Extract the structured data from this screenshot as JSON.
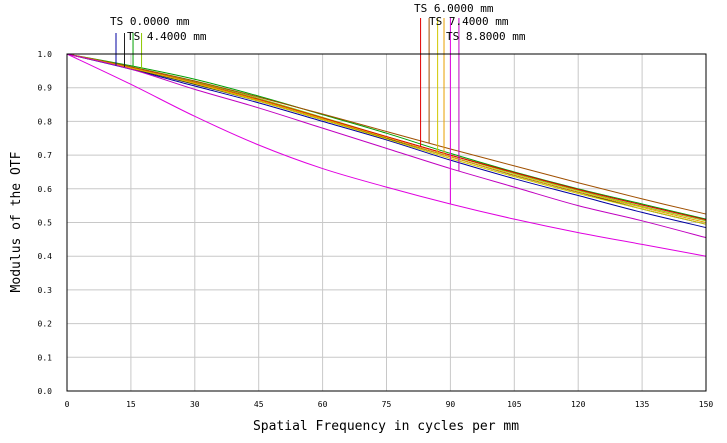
{
  "chart_data": {
    "type": "line",
    "title": "",
    "xlabel": "Spatial Frequency in cycles per mm",
    "ylabel": "Modulus of the OTF",
    "xlim": [
      0,
      150
    ],
    "ylim": [
      0,
      1
    ],
    "grid": true,
    "legend_position": "top",
    "x_ticks": [
      0,
      15,
      30,
      45,
      60,
      75,
      90,
      105,
      120,
      135,
      150
    ],
    "x_tick_labels": [
      "0",
      "15",
      "30",
      "45",
      "60",
      "75",
      "90",
      "105",
      "120",
      "135",
      "150"
    ],
    "y_ticks": [
      0,
      0.1,
      0.2,
      0.3,
      0.4,
      0.5,
      0.6,
      0.7,
      0.8,
      0.9,
      1.0
    ],
    "y_tick_labels": [
      "0.0",
      "0.1",
      "0.2",
      "0.3",
      "0.4",
      "0.5",
      "0.6",
      "0.7",
      "0.8",
      "0.9",
      "1.0"
    ],
    "x": [
      0,
      15,
      30,
      45,
      60,
      75,
      90,
      105,
      120,
      135,
      150
    ],
    "series": [
      {
        "name": "TS 0.0000 mm",
        "color": "#0000a0",
        "marker_x": 11.5,
        "values": [
          1.0,
          0.955,
          0.905,
          0.855,
          0.8,
          0.745,
          0.685,
          0.63,
          0.58,
          0.53,
          0.485
        ]
      },
      {
        "name": "",
        "color": "#202020",
        "marker_x": 13.5,
        "values": [
          1.0,
          0.957,
          0.91,
          0.86,
          0.805,
          0.75,
          0.695,
          0.64,
          0.59,
          0.54,
          0.495
        ]
      },
      {
        "name": "TS 4.4000 mm",
        "color": "#00a000",
        "marker_x": 15.5,
        "values": [
          1.0,
          0.965,
          0.925,
          0.875,
          0.82,
          0.765,
          0.705,
          0.65,
          0.6,
          0.555,
          0.51
        ]
      },
      {
        "name": "",
        "color": "#8cc800",
        "marker_x": 17.5,
        "values": [
          1.0,
          0.962,
          0.918,
          0.868,
          0.812,
          0.755,
          0.7,
          0.645,
          0.595,
          0.548,
          0.505
        ]
      },
      {
        "name": "TS 6.0000 mm",
        "color": "#e00000",
        "marker_x": 83.0,
        "values": [
          1.0,
          0.96,
          0.915,
          0.865,
          0.81,
          0.755,
          0.7,
          0.648,
          0.598,
          0.552,
          0.508
        ]
      },
      {
        "name": "",
        "color": "#a05000",
        "marker_x": 85.0,
        "values": [
          1.0,
          0.962,
          0.92,
          0.872,
          0.822,
          0.77,
          0.718,
          0.668,
          0.618,
          0.57,
          0.525
        ]
      },
      {
        "name": "TS 7.4000 mm",
        "color": "#d0c800",
        "marker_x": 87.0,
        "values": [
          1.0,
          0.958,
          0.912,
          0.86,
          0.805,
          0.748,
          0.69,
          0.636,
          0.586,
          0.54,
          0.495
        ]
      },
      {
        "name": "",
        "color": "#e8a000",
        "marker_x": 88.5,
        "values": [
          1.0,
          0.959,
          0.914,
          0.863,
          0.808,
          0.752,
          0.695,
          0.641,
          0.591,
          0.545,
          0.5
        ]
      },
      {
        "name": "TS 8.8000 mm",
        "color": "#e000e0",
        "marker_x": 90.0,
        "values": [
          1.0,
          0.91,
          0.815,
          0.73,
          0.66,
          0.605,
          0.555,
          0.51,
          0.47,
          0.435,
          0.4
        ]
      },
      {
        "name": "",
        "color": "#c000c0",
        "marker_x": 92.0,
        "values": [
          1.0,
          0.955,
          0.895,
          0.84,
          0.78,
          0.72,
          0.66,
          0.605,
          0.55,
          0.505,
          0.455
        ]
      }
    ]
  }
}
